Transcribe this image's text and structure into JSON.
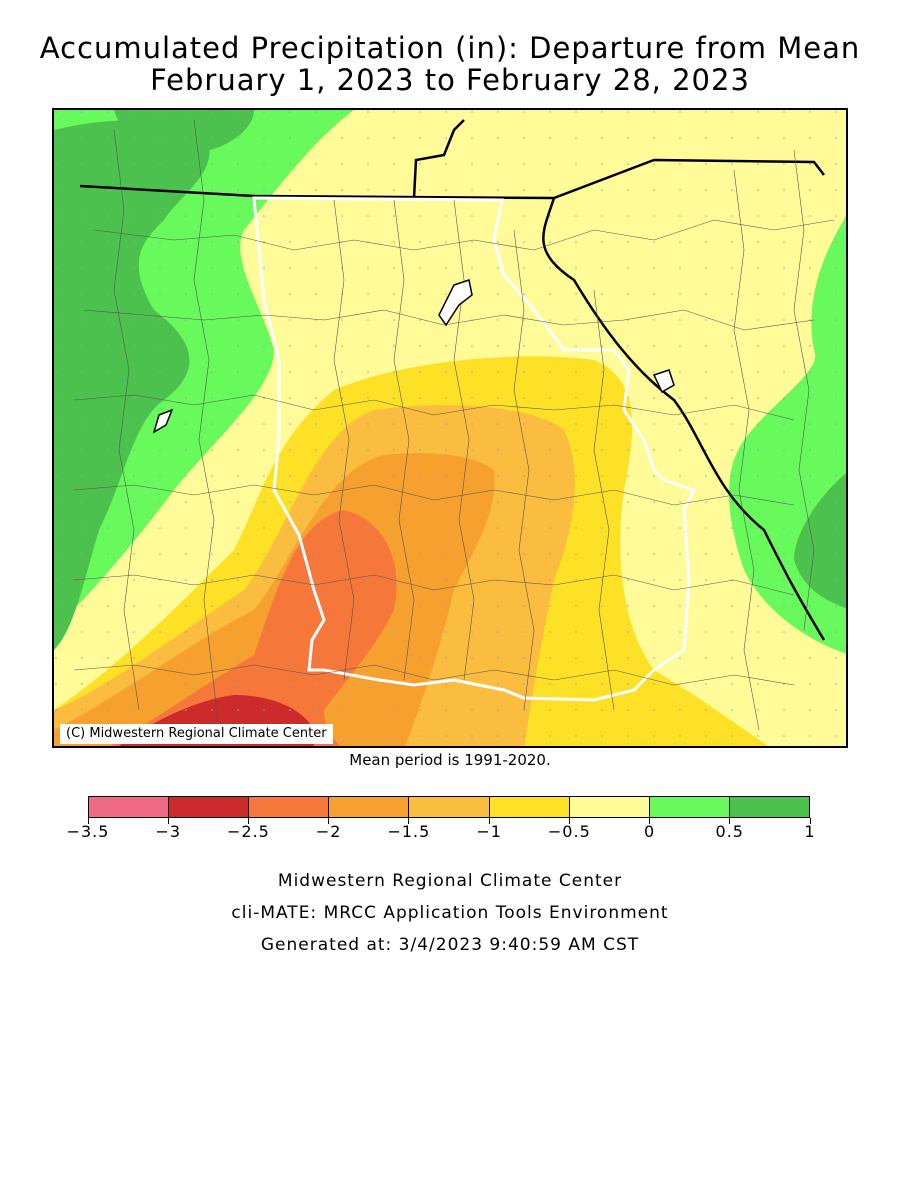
{
  "title": {
    "line1": "Accumulated Precipitation (in): Departure from Mean",
    "line2": "February 1, 2023 to February 28, 2023"
  },
  "map": {
    "copyright": "(C) Midwestern Regional Climate Center",
    "mean_period": "Mean period is 1991-2020."
  },
  "legend": {
    "bins": [
      {
        "color": "#ef6b85"
      },
      {
        "color": "#cd2a2c"
      },
      {
        "color": "#f6773a"
      },
      {
        "color": "#f6a02f"
      },
      {
        "color": "#fbbd3f"
      },
      {
        "color": "#fde126"
      },
      {
        "color": "#fffb98"
      },
      {
        "color": "#68f95c"
      },
      {
        "color": "#4dc14d"
      }
    ],
    "labels": [
      "-3.5",
      "-3",
      "-2.5",
      "-2",
      "-1.5",
      "-1",
      "-0.5",
      "0",
      "0.5",
      "1"
    ]
  },
  "credits": {
    "line1": "Midwestern Regional Climate Center",
    "line2": "cli-MATE: MRCC Application Tools Environment",
    "line3": "Generated at: 3/4/2023 9:40:59 AM CST"
  }
}
